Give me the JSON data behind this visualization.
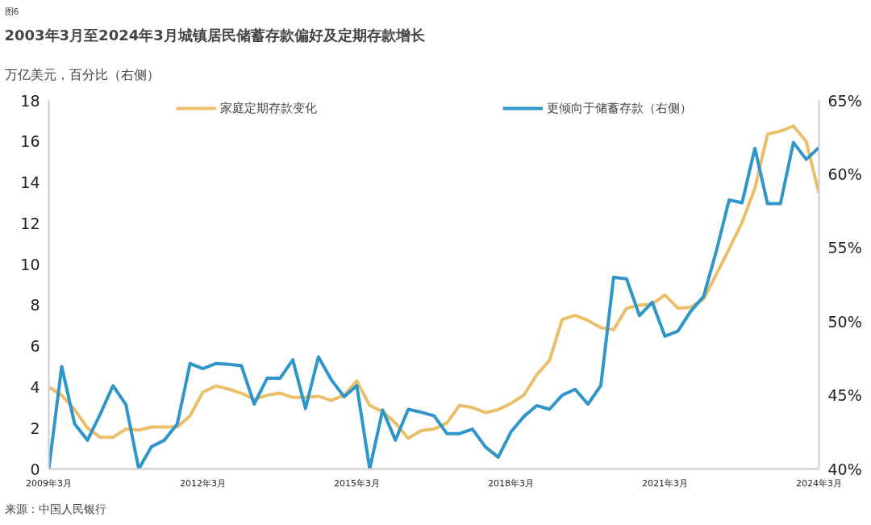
{
  "chart_data": {
    "type": "line",
    "title": "2003年3月至2024年3月城镇居民储蓄存款偏好及定期存款增长",
    "subtitle": "万亿美元，百分比（右侧）",
    "annotations": [
      "图6",
      "来源：中国人民银行"
    ],
    "x": [
      "2009-03",
      "2009-06",
      "2009-09",
      "2009-12",
      "2010-03",
      "2010-06",
      "2010-09",
      "2010-12",
      "2011-03",
      "2011-06",
      "2011-09",
      "2011-12",
      "2012-03",
      "2012-06",
      "2012-09",
      "2012-12",
      "2013-03",
      "2013-06",
      "2013-09",
      "2013-12",
      "2014-03",
      "2014-06",
      "2014-09",
      "2014-12",
      "2015-03",
      "2015-06",
      "2015-09",
      "2015-12",
      "2016-03",
      "2016-06",
      "2016-09",
      "2016-12",
      "2017-03",
      "2017-06",
      "2017-09",
      "2017-12",
      "2018-03",
      "2018-06",
      "2018-09",
      "2018-12",
      "2019-03",
      "2019-06",
      "2019-09",
      "2019-12",
      "2020-03",
      "2020-06",
      "2020-09",
      "2020-12",
      "2021-03",
      "2021-06",
      "2021-09",
      "2021-12",
      "2022-03",
      "2022-06",
      "2022-09",
      "2022-12",
      "2023-03",
      "2023-06",
      "2023-09",
      "2023-12",
      "2024-03"
    ],
    "series": [
      {
        "name": "家庭定期存款变化",
        "color": "#ebbe6a",
        "values": [
          4.0,
          3.6,
          2.9,
          2.0,
          1.55,
          1.55,
          1.95,
          1.9,
          2.05,
          2.05,
          2.05,
          2.6,
          3.75,
          4.05,
          3.9,
          3.7,
          3.4,
          3.6,
          3.7,
          3.5,
          3.5,
          3.55,
          3.35,
          3.6,
          4.3,
          3.1,
          2.8,
          2.25,
          1.5,
          1.87,
          1.95,
          2.25,
          3.1,
          3.0,
          2.75,
          2.9,
          3.2,
          3.6,
          4.6,
          5.3,
          7.3,
          7.5,
          7.25,
          6.9,
          6.8,
          7.85,
          8.0,
          8.05,
          8.5,
          7.85,
          7.9,
          8.3,
          9.5,
          10.75,
          12.05,
          13.7,
          16.35,
          16.5,
          16.75,
          16.0,
          13.45
        ]
      },
      {
        "name": "更倾向于储蓄存款（右侧）",
        "color": "#2e96c8",
        "axis": "y2",
        "values": [
          40.0,
          46.95,
          43.05,
          41.95,
          43.7,
          45.65,
          44.35,
          40.0,
          41.5,
          41.95,
          43.05,
          47.15,
          46.8,
          47.15,
          47.1,
          47.0,
          44.4,
          46.15,
          46.15,
          47.4,
          44.1,
          47.6,
          46.05,
          44.9,
          45.65,
          40.0,
          44.0,
          41.95,
          44.05,
          43.85,
          43.6,
          42.4,
          42.4,
          42.7,
          41.5,
          40.8,
          42.5,
          43.55,
          44.3,
          44.05,
          45.0,
          45.4,
          44.4,
          45.65,
          53.0,
          52.9,
          50.4,
          51.3,
          49.0,
          49.35,
          50.7,
          51.7,
          54.75,
          58.25,
          58.05,
          61.75,
          58.0,
          58.0,
          62.15,
          61.0,
          61.8
        ]
      }
    ],
    "xlim": [
      "2009-03",
      "2024-03"
    ],
    "xticks": [
      {
        "value": "2009-03",
        "label": "2009年3月"
      },
      {
        "value": "2012-03",
        "label": "2012年3月"
      },
      {
        "value": "2015-03",
        "label": "2015年3月"
      },
      {
        "value": "2018-03",
        "label": "2018年3月"
      },
      {
        "value": "2021-03",
        "label": "2021年3月"
      },
      {
        "value": "2024-03",
        "label": "2024年3月"
      }
    ],
    "ylim": [
      0,
      18
    ],
    "yticks": [
      0,
      2,
      4,
      6,
      8,
      10,
      12,
      14,
      16,
      18
    ],
    "y2lim": [
      40,
      65
    ],
    "y2ticks": [
      {
        "value": 40,
        "label": "40%"
      },
      {
        "value": 45,
        "label": "45%"
      },
      {
        "value": 50,
        "label": "50%"
      },
      {
        "value": 55,
        "label": "55%"
      },
      {
        "value": 60,
        "label": "60%"
      },
      {
        "value": 65,
        "label": "65%"
      }
    ],
    "legend": "top",
    "grid": false,
    "line_style": "solid"
  }
}
